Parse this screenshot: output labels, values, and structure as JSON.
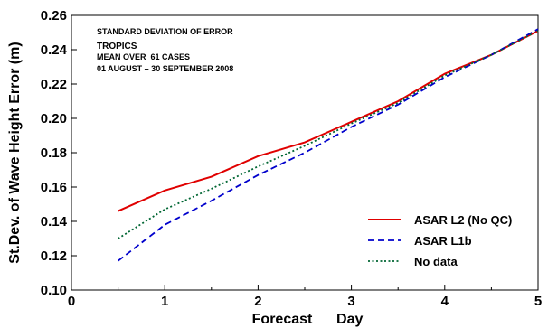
{
  "chart_data": {
    "type": "line",
    "annotations": [
      "STANDARD DEVIATION OF ERROR",
      "TROPICS",
      "MEAN OVER  61 CASES",
      "01 AUGUST – 30 SEPTEMBER 2008"
    ],
    "xlabel": "Forecast      Day",
    "ylabel": "St.Dev. of Wave Height Error  (m)",
    "xlim": [
      0,
      5
    ],
    "ylim": [
      0.1,
      0.26
    ],
    "xticks": [
      "0",
      "1",
      "2",
      "3",
      "4",
      "5"
    ],
    "yticks": [
      "0.10",
      "0.12",
      "0.14",
      "0.16",
      "0.18",
      "0.20",
      "0.22",
      "0.24",
      "0.26"
    ],
    "x": [
      0.5,
      1.0,
      1.5,
      2.0,
      2.5,
      3.0,
      3.5,
      4.0,
      4.5,
      5.0
    ],
    "legend_position": "bottom-right",
    "series": [
      {
        "name": "ASAR L2 (No QC)",
        "color": "#e00000",
        "dash": "solid",
        "values": [
          0.146,
          0.158,
          0.166,
          0.178,
          0.186,
          0.198,
          0.21,
          0.226,
          0.237,
          0.251
        ]
      },
      {
        "name": "ASAR L1b",
        "color": "#0000cc",
        "dash": "dashed",
        "values": [
          0.117,
          0.138,
          0.152,
          0.167,
          0.18,
          0.195,
          0.208,
          0.224,
          0.237,
          0.252
        ]
      },
      {
        "name": "No data",
        "color": "#006633",
        "dash": "dotted",
        "values": [
          0.13,
          0.147,
          0.159,
          0.172,
          0.184,
          0.197,
          0.209,
          0.225,
          0.237,
          0.251
        ]
      }
    ]
  }
}
